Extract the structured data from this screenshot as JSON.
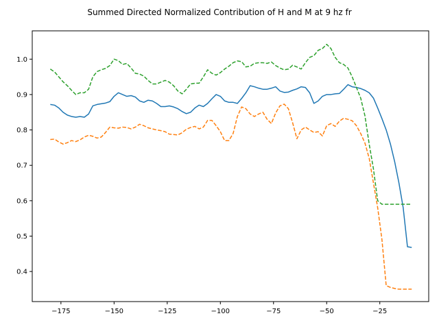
{
  "chart_data": {
    "type": "line",
    "title": "Summed Directed Normalized Contribution of H and M at 9 hz fr",
    "xlabel": "",
    "ylabel": "",
    "xlim": [
      -188.5,
      -2
    ],
    "ylim": [
      0.315,
      1.08
    ],
    "xticks": [
      -175,
      -150,
      -125,
      -100,
      -75,
      -50,
      -25
    ],
    "xtick_labels": [
      "−175",
      "−150",
      "−125",
      "−100",
      "−75",
      "−50",
      "−25"
    ],
    "yticks": [
      0.4,
      0.5,
      0.6,
      0.7,
      0.8,
      0.9,
      1.0
    ],
    "ytick_labels": [
      "0.4",
      "0.5",
      "0.6",
      "0.7",
      "0.8",
      "0.9",
      "1.0"
    ],
    "grid": false,
    "legend": false,
    "series": [
      {
        "color": "#1f77b4",
        "style": "solid",
        "x": [
          -180,
          -178,
          -176,
          -174,
          -172,
          -170,
          -168,
          -166,
          -164,
          -162,
          -160,
          -158,
          -156,
          -154,
          -152,
          -150,
          -148,
          -146,
          -144,
          -142,
          -140,
          -138,
          -136,
          -134,
          -132,
          -130,
          -128,
          -126,
          -124,
          -122,
          -120,
          -118,
          -116,
          -114,
          -112,
          -110,
          -108,
          -106,
          -104,
          -102,
          -100,
          -98,
          -96,
          -94,
          -92,
          -90,
          -88,
          -86,
          -84,
          -82,
          -80,
          -78,
          -76,
          -74,
          -72,
          -70,
          -68,
          -66,
          -64,
          -62,
          -60,
          -58,
          -56,
          -54,
          -52,
          -50,
          -48,
          -46,
          -44,
          -42,
          -40,
          -38,
          -36,
          -34,
          -32,
          -30,
          -28,
          -26,
          -24,
          -22,
          -20,
          -18,
          -16,
          -14,
          -12,
          -10
        ],
        "y": [
          0.872,
          0.87,
          0.862,
          0.85,
          0.842,
          0.838,
          0.836,
          0.838,
          0.836,
          0.845,
          0.868,
          0.872,
          0.874,
          0.876,
          0.88,
          0.895,
          0.905,
          0.9,
          0.895,
          0.897,
          0.893,
          0.882,
          0.878,
          0.884,
          0.882,
          0.875,
          0.866,
          0.866,
          0.868,
          0.865,
          0.86,
          0.852,
          0.846,
          0.85,
          0.862,
          0.87,
          0.866,
          0.875,
          0.888,
          0.9,
          0.895,
          0.882,
          0.878,
          0.878,
          0.875,
          0.889,
          0.905,
          0.925,
          0.922,
          0.918,
          0.915,
          0.915,
          0.918,
          0.922,
          0.91,
          0.906,
          0.907,
          0.912,
          0.916,
          0.922,
          0.92,
          0.905,
          0.875,
          0.882,
          0.895,
          0.9,
          0.9,
          0.902,
          0.903,
          0.915,
          0.928,
          0.922,
          0.92,
          0.917,
          0.912,
          0.905,
          0.89,
          0.862,
          0.832,
          0.8,
          0.76,
          0.71,
          0.65,
          0.58,
          0.47,
          0.468
        ]
      },
      {
        "color": "#ff7f0e",
        "style": "dashed",
        "x": [
          -180,
          -178,
          -176,
          -174,
          -172,
          -170,
          -168,
          -166,
          -164,
          -162,
          -160,
          -158,
          -156,
          -154,
          -152,
          -150,
          -148,
          -146,
          -144,
          -142,
          -140,
          -138,
          -136,
          -134,
          -132,
          -130,
          -128,
          -126,
          -124,
          -122,
          -120,
          -118,
          -116,
          -114,
          -112,
          -110,
          -108,
          -106,
          -104,
          -102,
          -100,
          -98,
          -96,
          -94,
          -92,
          -90,
          -88,
          -86,
          -84,
          -82,
          -80,
          -78,
          -76,
          -74,
          -72,
          -70,
          -68,
          -66,
          -64,
          -62,
          -60,
          -58,
          -56,
          -54,
          -52,
          -50,
          -48,
          -46,
          -44,
          -42,
          -40,
          -38,
          -36,
          -34,
          -32,
          -30,
          -28,
          -26,
          -24,
          -22,
          -20,
          -18,
          -16,
          -14,
          -12,
          -10
        ],
        "y": [
          0.773,
          0.774,
          0.766,
          0.76,
          0.764,
          0.77,
          0.767,
          0.772,
          0.78,
          0.785,
          0.782,
          0.777,
          0.78,
          0.793,
          0.808,
          0.806,
          0.805,
          0.808,
          0.807,
          0.803,
          0.808,
          0.816,
          0.812,
          0.806,
          0.803,
          0.8,
          0.798,
          0.795,
          0.788,
          0.787,
          0.786,
          0.792,
          0.802,
          0.807,
          0.81,
          0.803,
          0.808,
          0.827,
          0.827,
          0.812,
          0.795,
          0.77,
          0.77,
          0.79,
          0.838,
          0.865,
          0.86,
          0.845,
          0.838,
          0.845,
          0.85,
          0.83,
          0.818,
          0.848,
          0.868,
          0.873,
          0.86,
          0.82,
          0.775,
          0.8,
          0.808,
          0.8,
          0.793,
          0.795,
          0.783,
          0.812,
          0.818,
          0.81,
          0.825,
          0.833,
          0.83,
          0.826,
          0.812,
          0.79,
          0.763,
          0.72,
          0.65,
          0.58,
          0.49,
          0.36,
          0.355,
          0.352,
          0.35,
          0.35,
          0.35,
          0.35
        ]
      },
      {
        "color": "#2ca02c",
        "style": "dashed",
        "x": [
          -180,
          -178,
          -176,
          -174,
          -172,
          -170,
          -168,
          -166,
          -164,
          -162,
          -160,
          -158,
          -156,
          -154,
          -152,
          -150,
          -148,
          -146,
          -144,
          -142,
          -140,
          -138,
          -136,
          -134,
          -132,
          -130,
          -128,
          -126,
          -124,
          -122,
          -120,
          -118,
          -116,
          -114,
          -112,
          -110,
          -108,
          -106,
          -104,
          -102,
          -100,
          -98,
          -96,
          -94,
          -92,
          -90,
          -88,
          -86,
          -84,
          -82,
          -80,
          -78,
          -76,
          -74,
          -72,
          -70,
          -68,
          -66,
          -64,
          -62,
          -60,
          -58,
          -56,
          -54,
          -52,
          -50,
          -48,
          -46,
          -44,
          -42,
          -40,
          -38,
          -36,
          -34,
          -32,
          -30,
          -28,
          -26,
          -24,
          -22,
          -20,
          -18,
          -16,
          -14,
          -12,
          -10
        ],
        "y": [
          0.972,
          0.964,
          0.95,
          0.936,
          0.925,
          0.912,
          0.9,
          0.905,
          0.905,
          0.915,
          0.95,
          0.965,
          0.97,
          0.974,
          0.982,
          1.0,
          0.996,
          0.985,
          0.988,
          0.975,
          0.96,
          0.958,
          0.952,
          0.94,
          0.93,
          0.93,
          0.935,
          0.94,
          0.935,
          0.925,
          0.91,
          0.902,
          0.915,
          0.93,
          0.932,
          0.932,
          0.95,
          0.97,
          0.96,
          0.955,
          0.962,
          0.972,
          0.98,
          0.99,
          0.995,
          0.993,
          0.978,
          0.98,
          0.988,
          0.99,
          0.99,
          0.988,
          0.992,
          0.982,
          0.975,
          0.97,
          0.972,
          0.983,
          0.978,
          0.972,
          0.99,
          1.005,
          1.01,
          1.025,
          1.03,
          1.042,
          1.03,
          1.005,
          0.99,
          0.985,
          0.975,
          0.95,
          0.92,
          0.89,
          0.84,
          0.76,
          0.69,
          0.6,
          0.59,
          0.59,
          0.59,
          0.59,
          0.59,
          0.59,
          0.59,
          0.59
        ]
      }
    ]
  }
}
